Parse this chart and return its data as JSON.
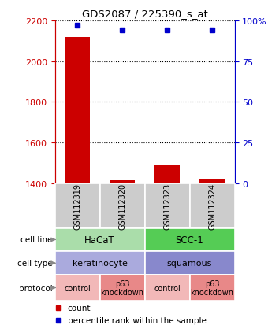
{
  "title": "GDS2087 / 225390_s_at",
  "samples": [
    "GSM112319",
    "GSM112320",
    "GSM112323",
    "GSM112324"
  ],
  "counts": [
    2120,
    1415,
    1490,
    1420
  ],
  "percentiles": [
    97,
    94,
    94,
    94
  ],
  "ylim_left": [
    1400,
    2200
  ],
  "ylim_right": [
    0,
    100
  ],
  "yticks_left": [
    1400,
    1600,
    1800,
    2000,
    2200
  ],
  "yticks_right": [
    0,
    25,
    50,
    75,
    100
  ],
  "ytick_labels_right": [
    "0",
    "25",
    "50",
    "75",
    "100%"
  ],
  "bar_color": "#cc0000",
  "dot_color": "#0000cc",
  "cell_line_row": [
    {
      "label": "HaCaT",
      "cols": [
        0,
        1
      ],
      "color": "#aaddaa"
    },
    {
      "label": "SCC-1",
      "cols": [
        2,
        3
      ],
      "color": "#55cc55"
    }
  ],
  "cell_type_row": [
    {
      "label": "keratinocyte",
      "cols": [
        0,
        1
      ],
      "color": "#aaaadd"
    },
    {
      "label": "squamous",
      "cols": [
        2,
        3
      ],
      "color": "#8888cc"
    }
  ],
  "protocol_row": [
    {
      "label": "control",
      "cols": [
        0
      ],
      "color": "#f2b8b8"
    },
    {
      "label": "p63\nknockdown",
      "cols": [
        1
      ],
      "color": "#e88888"
    },
    {
      "label": "control",
      "cols": [
        2
      ],
      "color": "#f2b8b8"
    },
    {
      "label": "p63\nknockdown",
      "cols": [
        3
      ],
      "color": "#e88888"
    }
  ],
  "row_labels": [
    "cell line",
    "cell type",
    "protocol"
  ],
  "legend_items": [
    {
      "color": "#cc0000",
      "label": "count"
    },
    {
      "color": "#0000cc",
      "label": "percentile rank within the sample"
    }
  ],
  "left_axis_color": "#cc0000",
  "right_axis_color": "#0000cc",
  "sample_bg_color": "#cccccc",
  "plot_bg_color": "#ffffff"
}
